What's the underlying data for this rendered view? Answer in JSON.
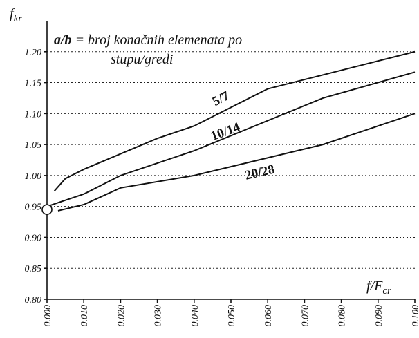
{
  "chart_data": {
    "type": "line",
    "ylabel": {
      "base": "f",
      "sub": "kr"
    },
    "xlabel": {
      "base": "f/F",
      "sub": "cr"
    },
    "annotation": {
      "bold": "a/b",
      "line1": " = broj konačnih elemenata po",
      "line2": "stupu/gredi"
    },
    "xlim": [
      0,
      0.1
    ],
    "ylim": [
      0.8,
      1.25
    ],
    "xticks": [
      {
        "value": 0,
        "label": "0.000"
      },
      {
        "value": 0.01,
        "label": "0.010"
      },
      {
        "value": 0.02,
        "label": "0.020"
      },
      {
        "value": 0.03,
        "label": "0.030"
      },
      {
        "value": 0.04,
        "label": "0.040"
      },
      {
        "value": 0.05,
        "label": "0.050"
      },
      {
        "value": 0.06,
        "label": "0.060"
      },
      {
        "value": 0.07,
        "label": "0.070"
      },
      {
        "value": 0.08,
        "label": "0.080"
      },
      {
        "value": 0.09,
        "label": "0.090"
      },
      {
        "value": 0.1,
        "label": "0.100"
      }
    ],
    "yticks": [
      {
        "value": 0.8,
        "label": "0.80"
      },
      0.85,
      {
        "value": 0.9,
        "label": "0.90"
      },
      0.95,
      {
        "value": 1.0,
        "label": "1.00"
      },
      1.05,
      {
        "value": 1.1,
        "label": "1.10"
      },
      1.15,
      {
        "value": 1.2,
        "label": "1.20"
      }
    ],
    "grid": true,
    "color": "#111111",
    "series": [
      {
        "name": "5/7",
        "x": [
          0.002,
          0.005,
          0.01,
          0.02,
          0.03,
          0.04,
          0.06,
          0.1
        ],
        "values": [
          0.975,
          0.995,
          1.01,
          1.035,
          1.06,
          1.08,
          1.14,
          1.2
        ]
      },
      {
        "name": "10/14",
        "x": [
          0.0,
          0.005,
          0.01,
          0.02,
          0.04,
          0.075,
          0.1
        ],
        "values": [
          0.95,
          0.96,
          0.97,
          1.0,
          1.04,
          1.125,
          1.167
        ]
      },
      {
        "name": "20/28",
        "x": [
          0.003,
          0.01,
          0.02,
          0.04,
          0.075,
          0.1
        ],
        "values": [
          0.943,
          0.953,
          0.98,
          1.0,
          1.05,
          1.1
        ]
      }
    ],
    "marker": {
      "x": 0.0,
      "y": 0.945
    }
  }
}
